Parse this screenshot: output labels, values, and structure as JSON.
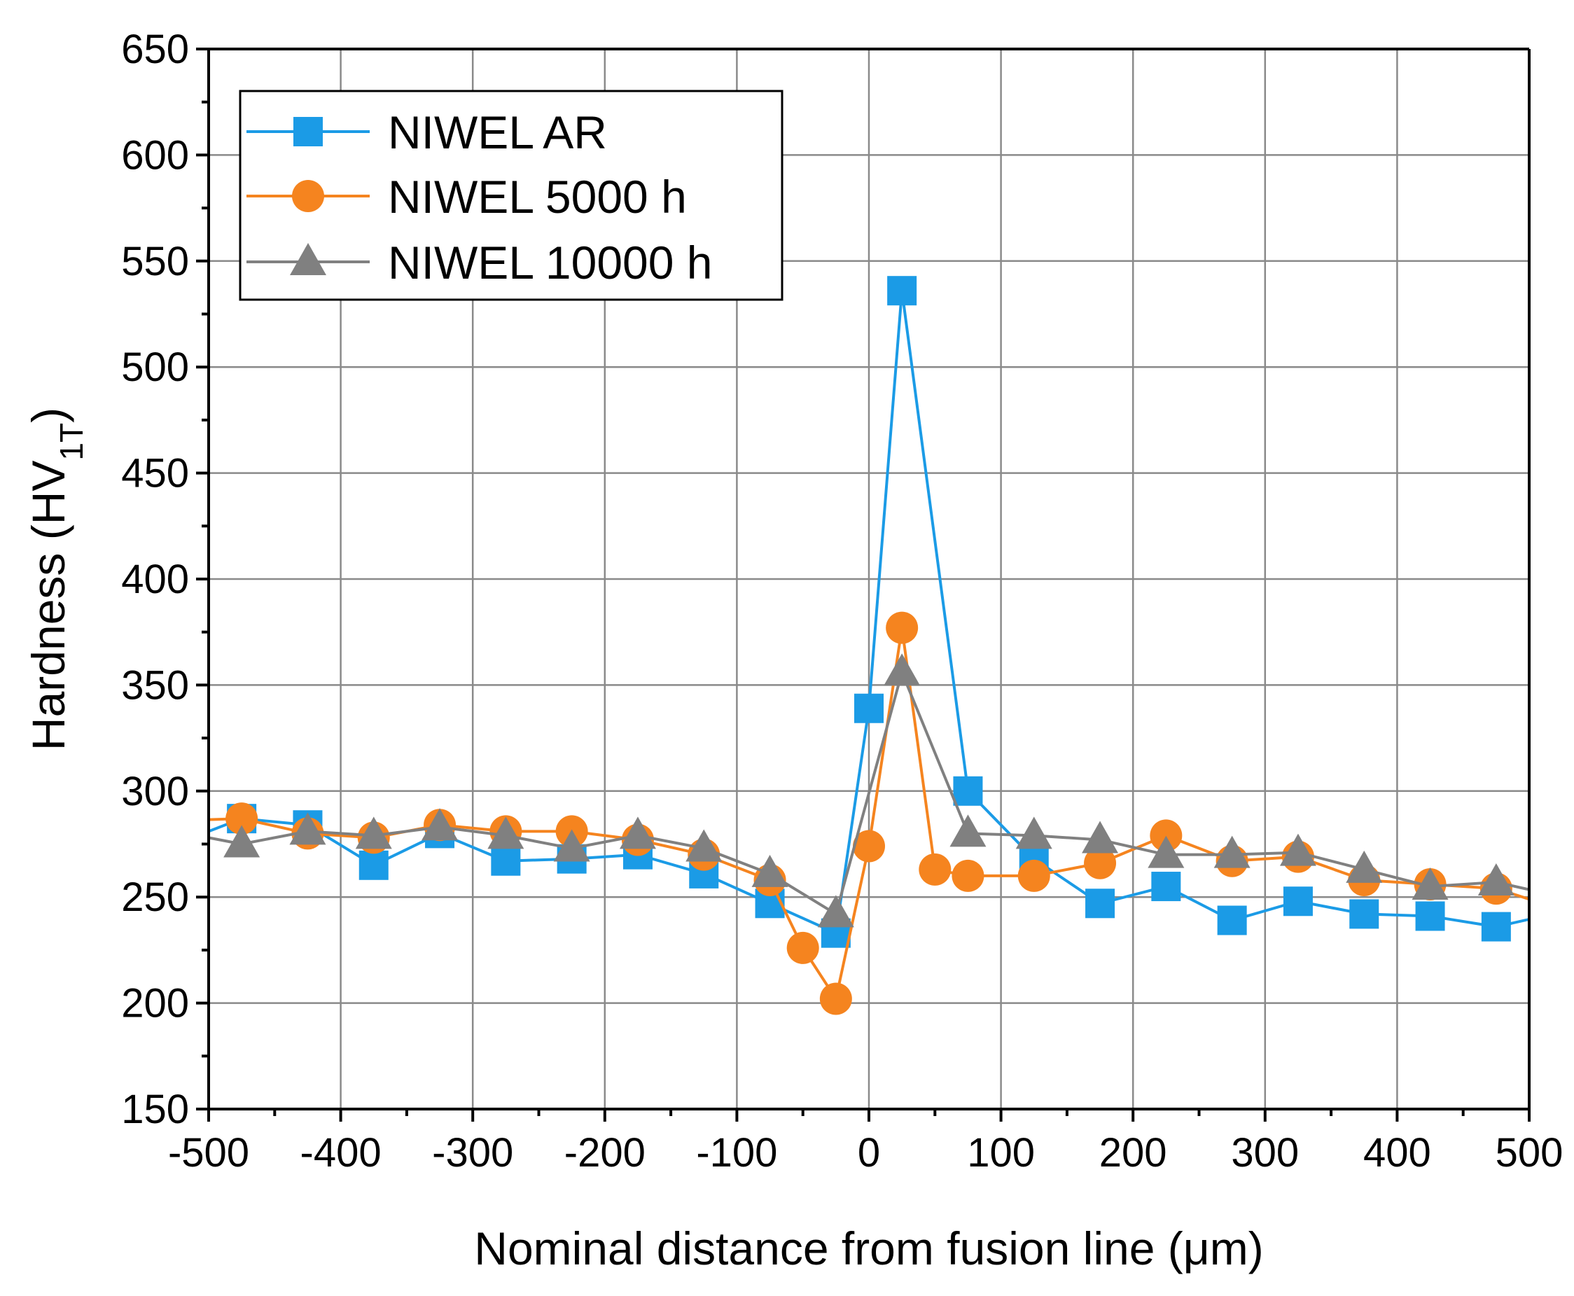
{
  "chart_data": {
    "type": "line",
    "title": "",
    "xlabel": "Nominal distance from fusion line (μm)",
    "ylabel_main": "Hardness (HV",
    "ylabel_sub": "1T",
    "ylabel_close": ")",
    "xlim": [
      -500,
      500
    ],
    "ylim": [
      150,
      650
    ],
    "xticks": [
      -500,
      -400,
      -300,
      -200,
      -100,
      0,
      100,
      200,
      300,
      400,
      500
    ],
    "yticks": [
      150,
      200,
      250,
      300,
      350,
      400,
      450,
      500,
      550,
      600,
      650
    ],
    "grid": true,
    "legend_position": "top-left",
    "series": [
      {
        "name": "NIWEL AR",
        "color": "#1b9be6",
        "marker": "square",
        "x": [
          -525,
          -475,
          -425,
          -375,
          -325,
          -275,
          -225,
          -175,
          -125,
          -75,
          -25,
          0,
          25,
          75,
          125,
          175,
          225,
          275,
          325,
          375,
          425,
          475,
          525
        ],
        "y": [
          275,
          287,
          284,
          265,
          280,
          267,
          268,
          270,
          261,
          247,
          233,
          339,
          536,
          300,
          268,
          247,
          255,
          239,
          248,
          242,
          241,
          236,
          243
        ],
        "markers_at": [
          -475,
          -425,
          -375,
          -325,
          -275,
          -225,
          -175,
          -125,
          -75,
          -25,
          0,
          25,
          75,
          125,
          175,
          225,
          275,
          325,
          375,
          425,
          475
        ]
      },
      {
        "name": "NIWEL 5000 h",
        "color": "#f5841f",
        "marker": "circle",
        "x": [
          -525,
          -475,
          -425,
          -375,
          -325,
          -275,
          -225,
          -175,
          -125,
          -75,
          -50,
          -25,
          0,
          25,
          50,
          75,
          125,
          175,
          225,
          275,
          325,
          375,
          425,
          475,
          525
        ],
        "y": [
          286,
          287,
          280,
          278,
          284,
          281,
          281,
          277,
          270,
          258,
          226,
          202,
          274,
          377,
          263,
          260,
          260,
          266,
          279,
          267,
          269,
          258,
          256,
          254,
          244
        ],
        "markers_at": [
          -475,
          -425,
          -375,
          -325,
          -275,
          -225,
          -175,
          -125,
          -75,
          -50,
          -25,
          0,
          25,
          50,
          75,
          125,
          175,
          225,
          275,
          325,
          375,
          425,
          475
        ]
      },
      {
        "name": "NIWEL 10000 h",
        "color": "#808080",
        "marker": "triangle",
        "x": [
          -525,
          -475,
          -425,
          -375,
          -325,
          -275,
          -225,
          -175,
          -125,
          -75,
          -25,
          25,
          75,
          125,
          175,
          225,
          275,
          325,
          375,
          425,
          475,
          525
        ],
        "y": [
          281,
          275,
          281,
          279,
          283,
          279,
          273,
          279,
          273,
          261,
          242,
          356,
          280,
          279,
          277,
          270,
          270,
          271,
          263,
          255,
          257,
          250
        ],
        "markers_at": [
          -475,
          -425,
          -375,
          -325,
          -275,
          -225,
          -175,
          -125,
          -75,
          -25,
          25,
          75,
          125,
          175,
          225,
          275,
          325,
          375,
          425,
          475
        ]
      }
    ]
  }
}
